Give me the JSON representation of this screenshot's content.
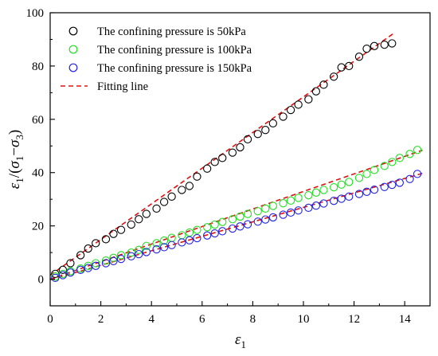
{
  "chart_data": {
    "type": "scatter",
    "xlabel": "ε1",
    "ylabel": "ε1/(σ1−σ3)",
    "xlim": [
      0,
      15
    ],
    "ylim": [
      -10,
      100
    ],
    "xticks": [
      0,
      2,
      4,
      6,
      8,
      10,
      12,
      14
    ],
    "yticks": [
      0,
      20,
      40,
      60,
      80,
      100
    ],
    "grid": false,
    "legend_position": "top-left",
    "series": [
      {
        "name": "The confining pressure is 50kPa",
        "color": "#000000",
        "marker": "open-circle",
        "points": [
          [
            0.2,
            2
          ],
          [
            0.5,
            3.5
          ],
          [
            0.8,
            6
          ],
          [
            1.2,
            9
          ],
          [
            1.5,
            11.5
          ],
          [
            1.8,
            13.5
          ],
          [
            2.2,
            15
          ],
          [
            2.5,
            17
          ],
          [
            2.8,
            18.5
          ],
          [
            3.2,
            20.5
          ],
          [
            3.5,
            22.5
          ],
          [
            3.8,
            24.5
          ],
          [
            4.2,
            26.5
          ],
          [
            4.5,
            29
          ],
          [
            4.8,
            31
          ],
          [
            5.2,
            33.5
          ],
          [
            5.5,
            35
          ],
          [
            5.8,
            38.5
          ],
          [
            6.2,
            41.5
          ],
          [
            6.5,
            44
          ],
          [
            6.8,
            45.5
          ],
          [
            7.2,
            47.5
          ],
          [
            7.5,
            49.5
          ],
          [
            7.8,
            52.5
          ],
          [
            8.2,
            54.5
          ],
          [
            8.5,
            56
          ],
          [
            8.8,
            58.5
          ],
          [
            9.2,
            61
          ],
          [
            9.5,
            63.5
          ],
          [
            9.8,
            65.5
          ],
          [
            10.2,
            67.5
          ],
          [
            10.5,
            70.5
          ],
          [
            10.8,
            73
          ],
          [
            11.2,
            76
          ],
          [
            11.5,
            79.5
          ],
          [
            11.8,
            80
          ],
          [
            12.2,
            83.5
          ],
          [
            12.5,
            86.5
          ],
          [
            12.8,
            87.5
          ],
          [
            13.2,
            88
          ],
          [
            13.5,
            88.5
          ]
        ]
      },
      {
        "name": "The confining pressure is 100kPa",
        "color": "#22dd22",
        "marker": "open-circle",
        "points": [
          [
            0.2,
            1
          ],
          [
            0.5,
            2
          ],
          [
            0.8,
            3
          ],
          [
            1.2,
            4
          ],
          [
            1.5,
            5
          ],
          [
            1.8,
            6
          ],
          [
            2.2,
            7
          ],
          [
            2.5,
            8
          ],
          [
            2.8,
            9
          ],
          [
            3.2,
            10
          ],
          [
            3.5,
            11
          ],
          [
            3.8,
            12.5
          ],
          [
            4.2,
            13.5
          ],
          [
            4.5,
            14.5
          ],
          [
            4.8,
            15.5
          ],
          [
            5.2,
            16.5
          ],
          [
            5.5,
            17.5
          ],
          [
            5.8,
            18.5
          ],
          [
            6.2,
            19.5
          ],
          [
            6.5,
            20.5
          ],
          [
            6.8,
            21.5
          ],
          [
            7.2,
            22.5
          ],
          [
            7.5,
            23.5
          ],
          [
            7.8,
            24.5
          ],
          [
            8.2,
            25.5
          ],
          [
            8.5,
            26.5
          ],
          [
            8.8,
            27.5
          ],
          [
            9.2,
            28.5
          ],
          [
            9.5,
            29.5
          ],
          [
            9.8,
            30.5
          ],
          [
            10.2,
            31.5
          ],
          [
            10.5,
            32.5
          ],
          [
            10.8,
            33.5
          ],
          [
            11.2,
            34.5
          ],
          [
            11.5,
            35.5
          ],
          [
            11.8,
            36.5
          ],
          [
            12.2,
            38
          ],
          [
            12.5,
            39.5
          ],
          [
            12.8,
            41
          ],
          [
            13.2,
            42.5
          ],
          [
            13.5,
            44
          ],
          [
            13.8,
            45.5
          ],
          [
            14.2,
            47
          ],
          [
            14.5,
            48.5
          ]
        ]
      },
      {
        "name": "The confining pressure is 150kPa",
        "color": "#2222dd",
        "marker": "open-circle",
        "points": [
          [
            0.2,
            0.5
          ],
          [
            0.5,
            1.5
          ],
          [
            0.8,
            2.5
          ],
          [
            1.2,
            3.5
          ],
          [
            1.5,
            4.2
          ],
          [
            1.8,
            5
          ],
          [
            2.2,
            6
          ],
          [
            2.5,
            6.8
          ],
          [
            2.8,
            7.6
          ],
          [
            3.2,
            8.6
          ],
          [
            3.5,
            9.4
          ],
          [
            3.8,
            10.2
          ],
          [
            4.2,
            11.2
          ],
          [
            4.5,
            12
          ],
          [
            4.8,
            12.8
          ],
          [
            5.2,
            13.8
          ],
          [
            5.5,
            14.6
          ],
          [
            5.8,
            15.4
          ],
          [
            6.2,
            16.4
          ],
          [
            6.5,
            17.2
          ],
          [
            6.8,
            18
          ],
          [
            7.2,
            19
          ],
          [
            7.5,
            19.8
          ],
          [
            7.8,
            20.6
          ],
          [
            8.2,
            21.6
          ],
          [
            8.5,
            22.4
          ],
          [
            8.8,
            23.2
          ],
          [
            9.2,
            24.2
          ],
          [
            9.5,
            25
          ],
          [
            9.8,
            25.8
          ],
          [
            10.2,
            26.8
          ],
          [
            10.5,
            27.6
          ],
          [
            10.8,
            28.4
          ],
          [
            11.2,
            29.4
          ],
          [
            11.5,
            30.2
          ],
          [
            11.8,
            31
          ],
          [
            12.2,
            32
          ],
          [
            12.5,
            32.8
          ],
          [
            12.8,
            33.6
          ],
          [
            13.2,
            34.6
          ],
          [
            13.5,
            35.4
          ],
          [
            13.8,
            36.2
          ],
          [
            14.2,
            37.6
          ],
          [
            14.5,
            39.5
          ]
        ]
      }
    ],
    "fit_lines": [
      {
        "name": "Fitting line",
        "color": "#e01010",
        "style": "dashed",
        "points": [
          [
            0,
            1.5
          ],
          [
            13.6,
            92.5
          ]
        ]
      },
      {
        "color": "#e01010",
        "style": "dashed",
        "points": [
          [
            0,
            0
          ],
          [
            14.7,
            48.4
          ]
        ]
      },
      {
        "color": "#e01010",
        "style": "dashed",
        "points": [
          [
            0,
            -0.2
          ],
          [
            14.7,
            39.7
          ]
        ]
      }
    ]
  }
}
